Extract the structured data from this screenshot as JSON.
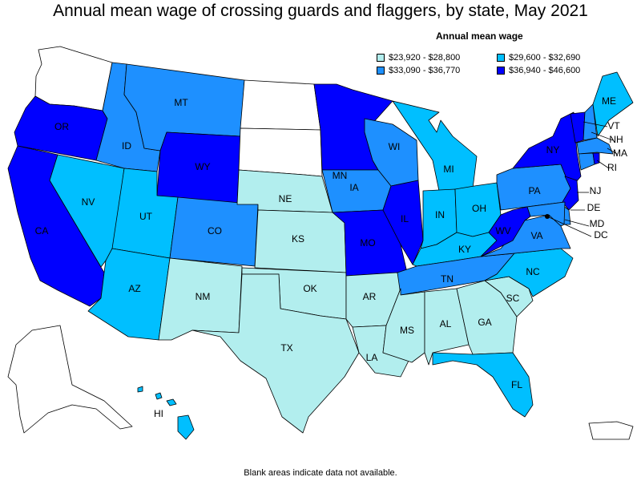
{
  "title": "Annual mean wage of crossing guards and flaggers, by state, May 2021",
  "legend": {
    "title": "Annual mean wage",
    "bins": [
      {
        "label": "$23,920 - $28,800",
        "color": "#b2eeee"
      },
      {
        "label": "$29,600 - $32,690",
        "color": "#00bfff"
      },
      {
        "label": "$33,090 - $36,770",
        "color": "#1e90ff"
      },
      {
        "label": "$36,940 - $46,600",
        "color": "#0000ff"
      }
    ]
  },
  "nodata_color": "#ffffff",
  "footnote": "Blank areas indicate data not available.",
  "states": {
    "WA": null,
    "OR": 3,
    "CA": 3,
    "NV": 1,
    "ID": 2,
    "MT": 2,
    "WY": 3,
    "UT": 1,
    "CO": 2,
    "AZ": 1,
    "NM": 0,
    "ND": null,
    "SD": null,
    "NE": 0,
    "KS": 0,
    "OK": 0,
    "TX": 0,
    "MN": 3,
    "IA": 2,
    "MO": 3,
    "AR": 0,
    "LA": 0,
    "WI": 2,
    "IL": 3,
    "MI": 1,
    "IN": 1,
    "OH": 1,
    "KY": 1,
    "TN": 2,
    "MS": 0,
    "AL": 0,
    "GA": 0,
    "FL": 1,
    "SC": 0,
    "NC": 1,
    "VA": 2,
    "WV": 3,
    "PA": 2,
    "NY": 3,
    "VT": 3,
    "NH": 2,
    "ME": 1,
    "MA": 2,
    "RI": 3,
    "CT": 2,
    "NJ": 3,
    "DE": 2,
    "MD": 2,
    "DC": null,
    "AK": null,
    "HI": 1,
    "PR": null
  },
  "labels": {
    "OR": "OR",
    "CA": "CA",
    "NV": "NV",
    "ID": "ID",
    "MT": "MT",
    "WY": "WY",
    "UT": "UT",
    "CO": "CO",
    "AZ": "AZ",
    "NM": "NM",
    "NE": "NE",
    "KS": "KS",
    "OK": "OK",
    "TX": "TX",
    "MN": "MN",
    "IA": "IA",
    "MO": "MO",
    "AR": "AR",
    "LA": "LA",
    "WI": "WI",
    "IL": "IL",
    "MI": "MI",
    "IN": "IN",
    "OH": "OH",
    "KY": "KY",
    "TN": "TN",
    "MS": "MS",
    "AL": "AL",
    "GA": "GA",
    "FL": "FL",
    "SC": "SC",
    "NC": "NC",
    "VA": "VA",
    "WV": "WV",
    "PA": "PA",
    "NY": "NY",
    "ME": "ME",
    "VT": "VT",
    "NH": "NH",
    "MA": "MA",
    "RI": "RI",
    "NJ": "NJ",
    "DE": "DE",
    "MD": "MD",
    "DC": "DC",
    "HI": "HI"
  }
}
